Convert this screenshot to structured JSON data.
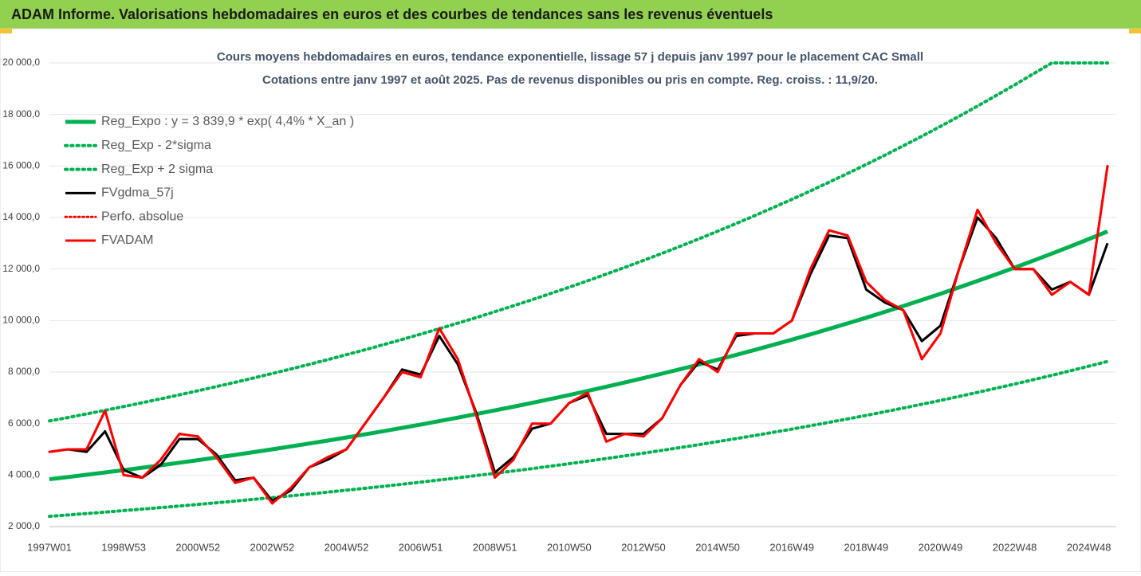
{
  "header": {
    "title": "ADAM Informe. Valorisations hebdomadaires en euros et des courbes de tendances sans les revenus éventuels"
  },
  "chart_data": {
    "type": "line",
    "title": "Cours moyens hebdomadaires en euros, tendance exponentielle, lissage 57 j depuis janv 1997 pour le placement CAC Small",
    "subtitle": "Cotations entre janv 1997 et août 2025. Pas de revenus disponibles ou pris en compte. Reg. croiss. : 11,9/20.",
    "categories": [
      "1997W01",
      null,
      null,
      null,
      "1998W53",
      null,
      null,
      null,
      "2000W52",
      null,
      null,
      null,
      "2002W52",
      null,
      null,
      null,
      "2004W52",
      null,
      null,
      null,
      "2006W51",
      null,
      null,
      null,
      "2008W51",
      null,
      null,
      null,
      "2010W50",
      null,
      null,
      null,
      "2012W50",
      null,
      null,
      null,
      "2014W50",
      null,
      null,
      null,
      "2016W49",
      null,
      null,
      null,
      "2018W49",
      null,
      null,
      null,
      "2020W49",
      null,
      null,
      null,
      "2022W48",
      null,
      null,
      null,
      "2024W48",
      null
    ],
    "ylim": [
      2000,
      20000
    ],
    "yticks": [
      {
        "value": 2000,
        "label": "2 000,0"
      },
      {
        "value": 4000,
        "label": "4 000,0"
      },
      {
        "value": 6000,
        "label": "6 000,0"
      },
      {
        "value": 8000,
        "label": "8 000,0"
      },
      {
        "value": 10000,
        "label": "10 000,0"
      },
      {
        "value": 12000,
        "label": "12 000,0"
      },
      {
        "value": 14000,
        "label": "14 000,0"
      },
      {
        "value": 16000,
        "label": "16 000,0"
      },
      {
        "value": 18000,
        "label": "18 000,0"
      },
      {
        "value": 20000,
        "label": "20 000,0"
      }
    ],
    "grid": true,
    "legend": "upper left",
    "series": [
      {
        "name": "Reg_Expo : y = 3 839,9 * exp( 4,4% *  X_an )",
        "color": "#00b050",
        "style": "solid",
        "width": 5,
        "values": [
          3840,
          3925,
          4013,
          4102,
          4193,
          4287,
          4382,
          4479,
          4579,
          4681,
          4785,
          4891,
          5000,
          5111,
          5225,
          5341,
          5460,
          5582,
          5706,
          5833,
          5962,
          6095,
          6231,
          6369,
          6511,
          6656,
          6804,
          6955,
          7110,
          7268,
          7430,
          7595,
          7764,
          7937,
          8113,
          8294,
          8478,
          8667,
          8860,
          9057,
          9258,
          9464,
          9675,
          9890,
          10110,
          10335,
          10565,
          10800,
          11040,
          11286,
          11537,
          11793,
          12056,
          12324,
          12598,
          12878,
          13165,
          13458
        ]
      },
      {
        "name": "Reg_Exp - 2*sigma",
        "color": "#00b050",
        "style": "dotted",
        "width": 4,
        "values": [
          2400,
          2453,
          2508,
          2564,
          2621,
          2679,
          2739,
          2799,
          2862,
          2926,
          2991,
          3057,
          3125,
          3194,
          3266,
          3338,
          3413,
          3489,
          3566,
          3646,
          3726,
          3809,
          3894,
          3981,
          4069,
          4160,
          4253,
          4347,
          4444,
          4543,
          4644,
          4747,
          4853,
          4961,
          5071,
          5184,
          5299,
          5417,
          5538,
          5661,
          5786,
          5915,
          6047,
          6181,
          6319,
          6459,
          6603,
          6750,
          6900,
          7054,
          7211,
          7371,
          7535,
          7703,
          7874,
          8049,
          8228,
          8411
        ]
      },
      {
        "name": "Reg_Exp + 2 sigma",
        "color": "#00b050",
        "style": "dotted",
        "width": 4,
        "values": [
          6100,
          6235,
          6375,
          6516,
          6661,
          6810,
          6961,
          7115,
          7274,
          7436,
          7601,
          7770,
          7943,
          8119,
          8300,
          8484,
          8673,
          8867,
          9064,
          9266,
          9471,
          9682,
          9898,
          10117,
          10343,
          10573,
          10808,
          11048,
          11294,
          11545,
          11803,
          12065,
          12333,
          12608,
          12888,
          13175,
          13468,
          13768,
          14074,
          14387,
          14706,
          15034,
          15369,
          15711,
          16060,
          16417,
          16783,
          17156,
          17538,
          17928,
          18327,
          18734,
          19151,
          19577,
          20000,
          20000,
          20000,
          20000
        ]
      },
      {
        "name": "FVgdma_57j",
        "color": "#000000",
        "style": "solid",
        "width": 3,
        "values": [
          4900,
          5000,
          4900,
          5700,
          4200,
          3900,
          4400,
          5400,
          5400,
          4800,
          3800,
          3900,
          3000,
          3400,
          4300,
          4600,
          5000,
          6000,
          7000,
          8100,
          7900,
          9400,
          8300,
          6400,
          4100,
          4700,
          5800,
          6000,
          6800,
          7100,
          5600,
          5600,
          5600,
          6200,
          7500,
          8400,
          8100,
          9400,
          9500,
          9500,
          10000,
          11800,
          13300,
          13200,
          11200,
          10700,
          10400,
          9200,
          9800,
          12000,
          14000,
          13200,
          12000,
          12000,
          11200,
          11500,
          11000,
          13000
        ]
      },
      {
        "name": "Perfo. absolue",
        "color": "#ff0000",
        "style": "dotted",
        "width": 3,
        "values": [
          4900,
          5000,
          5000,
          6500,
          4000,
          3900,
          4600,
          5600,
          5500,
          4700,
          3700,
          3900,
          2900,
          3500,
          4300,
          4700,
          5000,
          6000,
          7000,
          8000,
          7800,
          9700,
          8500,
          6300,
          3900,
          4600,
          6000,
          6000,
          6800,
          7200,
          5300,
          5600,
          5500,
          6200,
          7500,
          8500,
          8000,
          9500,
          9500,
          9500,
          10000,
          12000,
          13500,
          13300,
          11500,
          10800,
          10400,
          8500,
          9500,
          12000,
          14300,
          13000,
          12000,
          12000,
          11000,
          11500,
          11000,
          16000
        ]
      },
      {
        "name": "FVADAM",
        "color": "#ff0000",
        "style": "solid",
        "width": 3,
        "values": [
          4900,
          5000,
          5000,
          6500,
          4000,
          3900,
          4600,
          5600,
          5500,
          4700,
          3700,
          3900,
          2900,
          3500,
          4300,
          4700,
          5000,
          6000,
          7000,
          8000,
          7800,
          9700,
          8500,
          6300,
          3900,
          4600,
          6000,
          6000,
          6800,
          7200,
          5300,
          5600,
          5500,
          6200,
          7500,
          8500,
          8000,
          9500,
          9500,
          9500,
          10000,
          12000,
          13500,
          13300,
          11500,
          10800,
          10400,
          8500,
          9500,
          12000,
          14300,
          13000,
          12000,
          12000,
          11000,
          11500,
          11000,
          16000
        ]
      }
    ]
  }
}
